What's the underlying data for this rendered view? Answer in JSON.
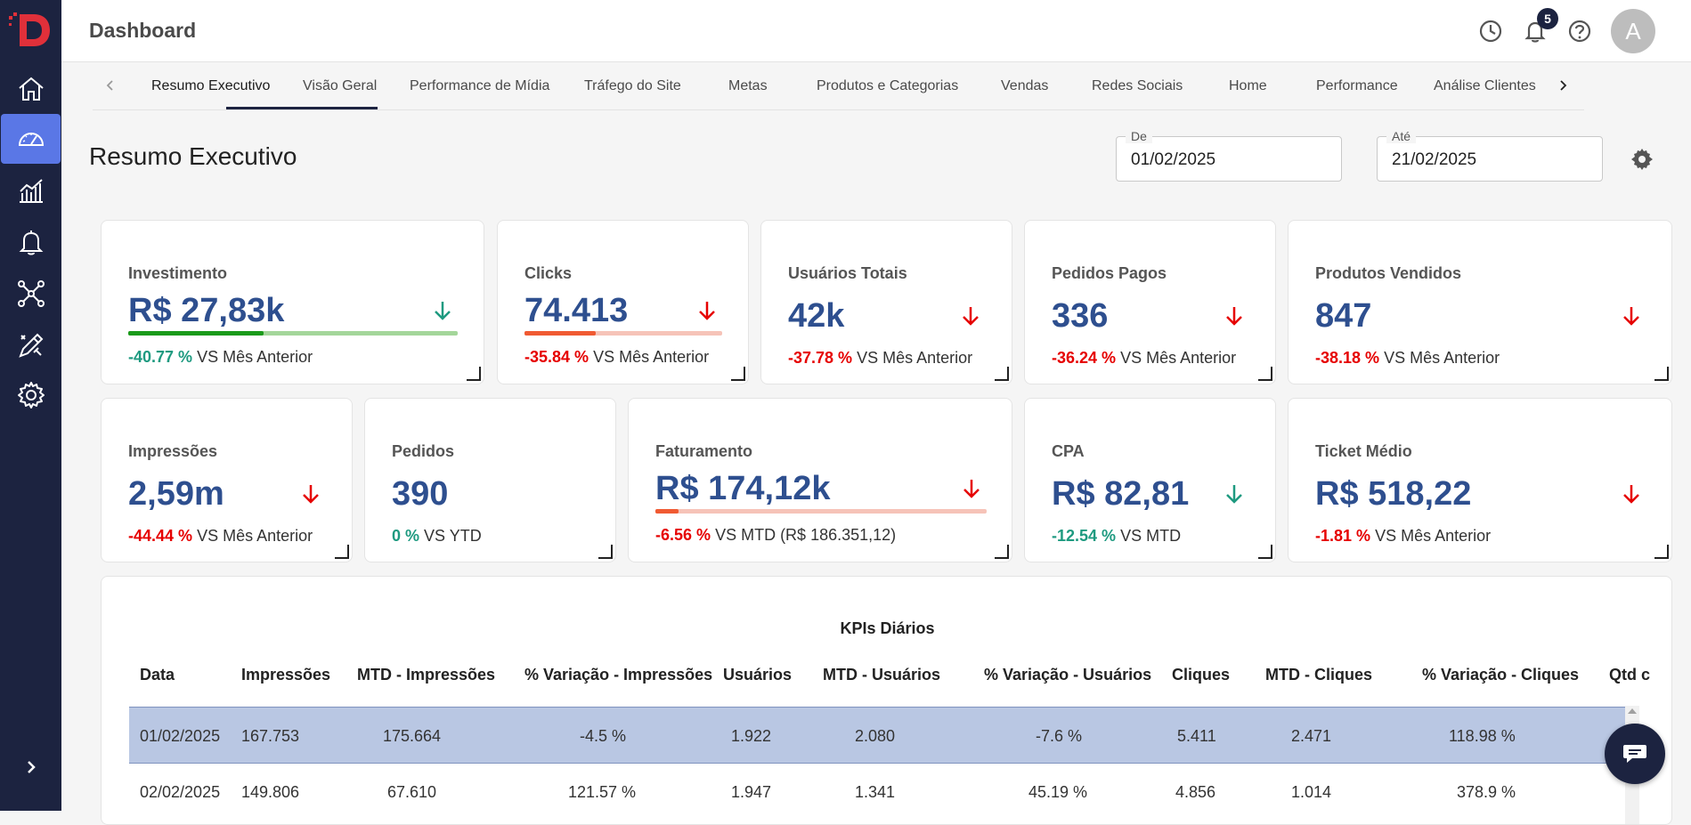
{
  "header": {
    "title": "Dashboard",
    "notification_count": "5",
    "avatar_initial": "A"
  },
  "sidebar": {
    "items": [
      {
        "name": "home-icon"
      },
      {
        "name": "speedometer-icon",
        "active": true
      },
      {
        "name": "analytics-icon"
      },
      {
        "name": "bell-icon"
      },
      {
        "name": "network-icon"
      },
      {
        "name": "design-tools-icon"
      },
      {
        "name": "gear-icon"
      }
    ]
  },
  "tabs": [
    "Resumo Executivo",
    "Visão Geral",
    "Performance de Mídia",
    "Tráfego do Site",
    "Metas",
    "Produtos e Categorias",
    "Vendas",
    "Redes Sociais",
    "Home",
    "Performance",
    "Análise Clientes"
  ],
  "page": {
    "title": "Resumo Executivo",
    "date_from_label": "De",
    "date_from": "01/02/2025",
    "date_to_label": "Até",
    "date_to": "21/02/2025"
  },
  "kpis": [
    {
      "label": "Investimento",
      "value": "R$ 27,83k",
      "pct": "-40.77 %",
      "compare": "VS Mês Anterior",
      "trend": "positive",
      "bar_fraction": 0.41
    },
    {
      "label": "Clicks",
      "value": "74.413",
      "pct": "-35.84 %",
      "compare": "VS Mês Anterior",
      "trend": "negative",
      "bar_fraction": 0.36
    },
    {
      "label": "Usuários Totais",
      "value": "42k",
      "pct": "-37.78 %",
      "compare": "VS Mês Anterior",
      "trend": "negative"
    },
    {
      "label": "Pedidos Pagos",
      "value": "336",
      "pct": "-36.24 %",
      "compare": "VS Mês Anterior",
      "trend": "negative"
    },
    {
      "label": "Produtos Vendidos",
      "value": "847",
      "pct": "-38.18 %",
      "compare": "VS Mês Anterior",
      "trend": "negative"
    },
    {
      "label": "Impressões",
      "value": "2,59m",
      "pct": "-44.44 %",
      "compare": "VS Mês Anterior",
      "trend": "negative"
    },
    {
      "label": "Pedidos",
      "value": "390",
      "pct": "0 %",
      "compare": "VS YTD",
      "trend": "neutral"
    },
    {
      "label": "Faturamento",
      "value": "R$ 174,12k",
      "pct": "-6.56 %",
      "compare": "VS MTD (R$ 186.351,12)",
      "trend": "negative",
      "bar_fraction": 0.07
    },
    {
      "label": "CPA",
      "value": "R$ 82,81",
      "pct": "-12.54 %",
      "compare": "VS MTD",
      "trend": "positive"
    },
    {
      "label": "Ticket Médio",
      "value": "R$ 518,22",
      "pct": "-1.81 %",
      "compare": "VS Mês Anterior",
      "trend": "negative"
    }
  ],
  "table": {
    "title": "KPIs Diários",
    "columns": [
      "Data",
      "Impressões",
      "MTD - Impressões",
      "% Variação - Impressões",
      "Usuários",
      "MTD - Usuários",
      "% Variação - Usuários",
      "Cliques",
      "MTD - Cliques",
      "% Variação - Cliques",
      "Qtd c"
    ],
    "rows": [
      [
        "01/02/2025",
        "167.753",
        "175.664",
        "-4.5 %",
        "1.922",
        "2.080",
        "-7.6 %",
        "5.411",
        "2.471",
        "118.98 %"
      ],
      [
        "02/02/2025",
        "149.806",
        "67.610",
        "121.57 %",
        "1.947",
        "1.341",
        "45.19 %",
        "4.856",
        "1.014",
        "378.9 %"
      ]
    ]
  },
  "colors": {
    "sidebar_bg": "#1c2340",
    "sidebar_active": "#5a77e6",
    "value_blue": "#2e4f8f",
    "negative": "#e60000",
    "positive": "#1e9a80",
    "selected_row": "#b9c7e3"
  }
}
